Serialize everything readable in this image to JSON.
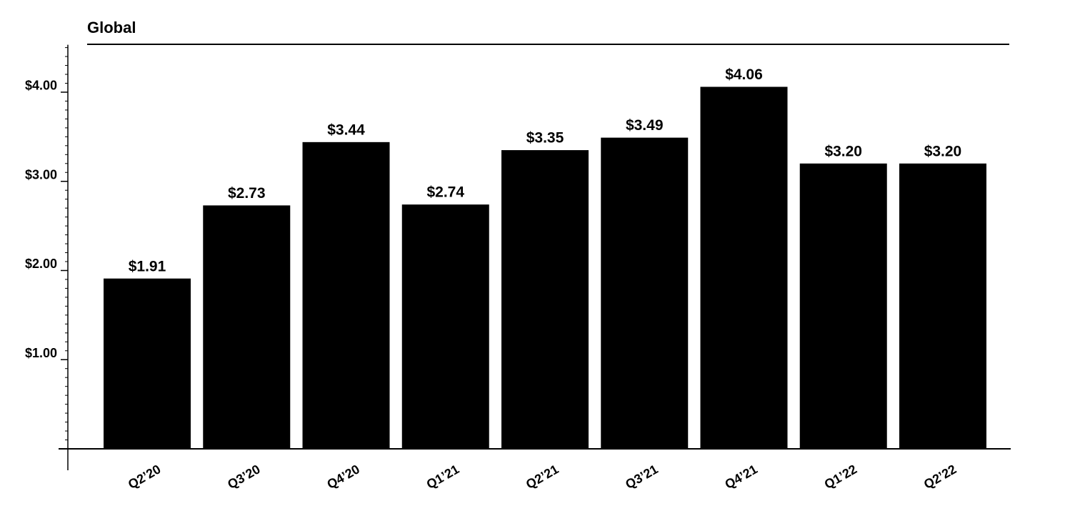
{
  "chart_data": {
    "type": "bar",
    "title": "Global",
    "categories": [
      "Q2’20",
      "Q3’20",
      "Q4’20",
      "Q1’21",
      "Q2’21",
      "Q3’21",
      "Q4’21",
      "Q1’22",
      "Q2’22"
    ],
    "values": [
      1.91,
      2.73,
      3.44,
      2.74,
      3.35,
      3.49,
      4.06,
      3.2,
      3.2
    ],
    "value_labels": [
      "$1.91",
      "$2.73",
      "$3.44",
      "$2.74",
      "$3.35",
      "$3.49",
      "$4.06",
      "$3.20",
      "$3.20"
    ],
    "color": "#000000",
    "ylim": [
      0,
      4.5
    ],
    "yticks": [
      {
        "value": 1,
        "label": "$1.00"
      },
      {
        "value": 2,
        "label": "$2.00"
      },
      {
        "value": 3,
        "label": "$3.00"
      },
      {
        "value": 4,
        "label": "$4.00"
      }
    ],
    "grid": false
  }
}
